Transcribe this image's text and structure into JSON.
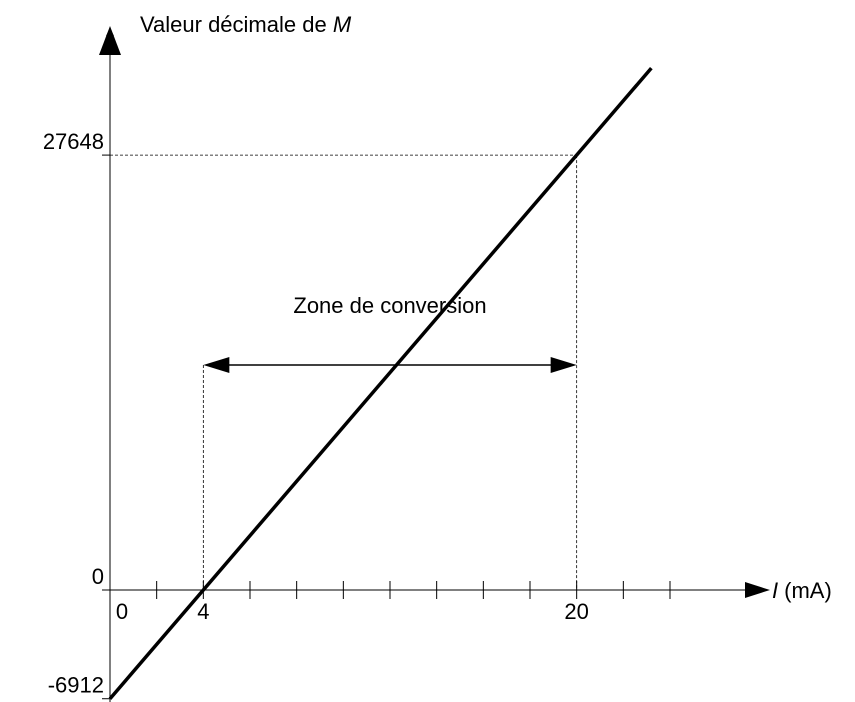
{
  "chart_data": {
    "type": "line",
    "y_label": "Valeur décimale de ",
    "y_label_var": "M",
    "x_label_var": "I",
    "x_label": "(mA)",
    "annotation": "Zone de conversion",
    "annotation_arrow": {
      "x": [
        4,
        20
      ],
      "y": 14300
    },
    "x": [
      0,
      23.2
    ],
    "values": [
      -6912,
      33178
    ],
    "color": "#000000",
    "xlim": [
      0,
      27
    ],
    "ylim": [
      -7120,
      35600
    ],
    "xticks": [
      0,
      4,
      20
    ],
    "xminor_ticks": [
      2,
      6,
      8,
      10,
      12,
      14,
      16,
      18,
      22,
      24
    ],
    "yticks": [
      -6912,
      0,
      27648
    ]
  }
}
